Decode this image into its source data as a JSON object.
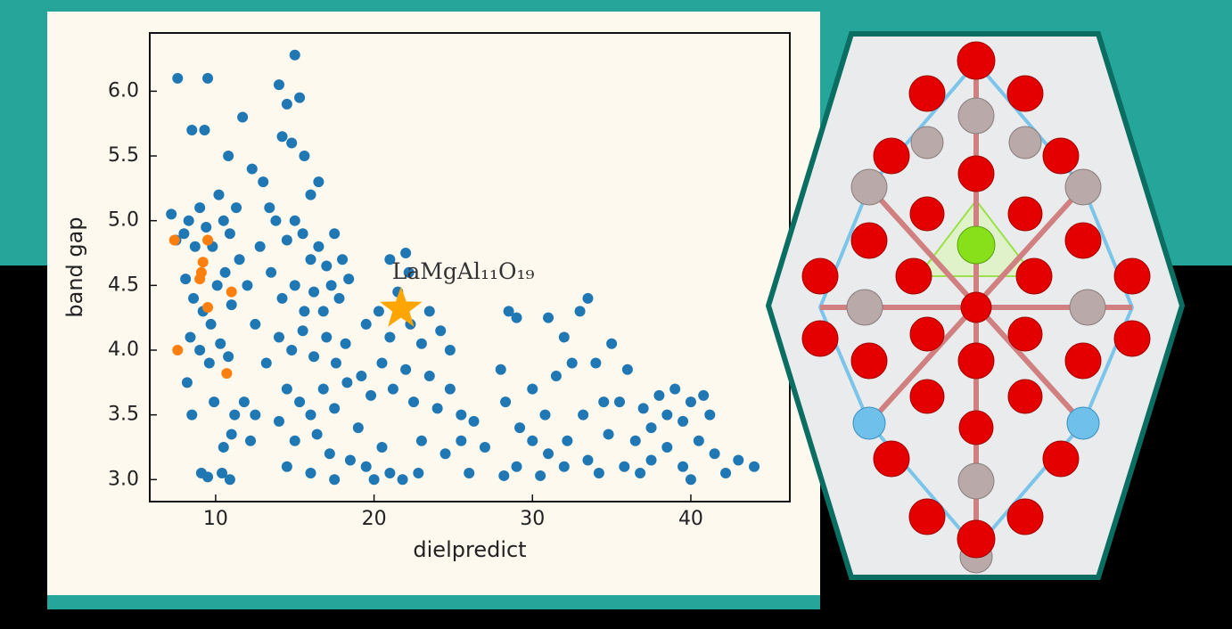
{
  "chart_data": {
    "type": "scatter",
    "xlabel": "dielpredict",
    "ylabel": "band gap",
    "xlim": [
      5.84,
      46.25
    ],
    "ylim": [
      2.83,
      6.45
    ],
    "xticks": [
      10,
      20,
      30,
      40
    ],
    "yticks": [
      {
        "value": 3.0,
        "label": "3.0"
      },
      3.5,
      {
        "value": 4.0,
        "label": "4.0"
      },
      4.5,
      {
        "value": 5.0,
        "label": "5.0"
      },
      5.5,
      {
        "value": 6.0,
        "label": "6.0"
      }
    ],
    "series": [
      {
        "color": "#1f77b4",
        "x": [
          7.6,
          9.5,
          8.5,
          9.3,
          10.8,
          11.7,
          7.2,
          7.5,
          8.0,
          8.3,
          8.7,
          9.0,
          9.4,
          9.8,
          10.2,
          10.5,
          10.9,
          11.3,
          8.1,
          8.6,
          9.2,
          9.7,
          10.1,
          10.6,
          11.0,
          11.5,
          8.4,
          9.0,
          9.6,
          10.3,
          10.8,
          8.2,
          9.9,
          8.5,
          11.2,
          10.5,
          11.0,
          9.1,
          9.5,
          10.4,
          10.9,
          12.2,
          12.5,
          11.8,
          12.5,
          12.0,
          12.8,
          13.0,
          13.4,
          12.3,
          14.0,
          15.0,
          14.5,
          14.8,
          15.3,
          14.2,
          15.6,
          16.0,
          16.5,
          13.8,
          14.5,
          15.0,
          15.5,
          16.0,
          16.5,
          17.0,
          17.5,
          18.0,
          13.5,
          14.2,
          15.0,
          15.6,
          16.2,
          16.8,
          17.3,
          17.8,
          18.4,
          14.0,
          14.8,
          15.5,
          16.2,
          17.0,
          17.6,
          18.2,
          13.2,
          14.5,
          15.3,
          16.0,
          16.8,
          17.5,
          18.3,
          14.0,
          15.0,
          16.4,
          17.2,
          14.5,
          16.0,
          17.5,
          18.5,
          19.0,
          19.5,
          20.0,
          20.5,
          21.0,
          21.8,
          19.2,
          19.8,
          20.5,
          21.2,
          22.0,
          22.5,
          19.5,
          20.3,
          21.0,
          21.5,
          22.3,
          23.0,
          23.5,
          24.2,
          24.8,
          21.0,
          22.2,
          22.0,
          23.5,
          24.0,
          24.8,
          25.5,
          23.0,
          24.5,
          25.5,
          26.3,
          27.0,
          26.0,
          22.8,
          28.0,
          28.5,
          29.0,
          28.3,
          29.2,
          30.0,
          30.8,
          31.5,
          32.0,
          32.5,
          33.0,
          33.5,
          31.0,
          34.0,
          34.5,
          33.2,
          32.2,
          31.0,
          30.0,
          29.0,
          28.2,
          30.5,
          32.0,
          33.5,
          34.8,
          35.5,
          35.0,
          36.0,
          36.5,
          35.8,
          34.2,
          37.0,
          37.5,
          38.0,
          38.5,
          39.0,
          39.5,
          40.0,
          40.8,
          41.2,
          37.5,
          38.5,
          39.5,
          40.5,
          41.5,
          42.2,
          43.0,
          44.0,
          36.8,
          40.0
        ],
        "values": [
          6.1,
          6.1,
          5.7,
          5.7,
          5.5,
          5.8,
          5.05,
          4.85,
          4.9,
          5.0,
          4.8,
          5.1,
          4.95,
          4.8,
          5.2,
          5.0,
          4.9,
          5.1,
          4.55,
          4.4,
          4.3,
          4.2,
          4.5,
          4.6,
          4.35,
          4.7,
          4.1,
          4.0,
          3.9,
          4.05,
          3.95,
          3.75,
          3.6,
          3.5,
          3.5,
          3.25,
          3.35,
          3.05,
          3.02,
          3.05,
          3.0,
          3.3,
          3.5,
          3.6,
          4.2,
          4.5,
          4.8,
          5.3,
          5.1,
          5.4,
          6.05,
          6.28,
          5.9,
          5.6,
          5.95,
          5.65,
          5.5,
          5.2,
          5.3,
          5.0,
          4.85,
          5.0,
          4.9,
          4.7,
          4.8,
          4.65,
          4.9,
          4.7,
          4.6,
          4.4,
          4.5,
          4.3,
          4.45,
          4.3,
          4.5,
          4.4,
          4.55,
          4.1,
          4.0,
          4.15,
          3.95,
          4.1,
          3.9,
          4.05,
          3.9,
          3.7,
          3.6,
          3.5,
          3.7,
          3.55,
          3.75,
          3.45,
          3.3,
          3.35,
          3.2,
          3.1,
          3.05,
          3.0,
          3.15,
          3.4,
          3.1,
          3.0,
          3.25,
          3.05,
          3.0,
          3.8,
          3.65,
          3.9,
          3.7,
          3.85,
          3.6,
          4.2,
          4.3,
          4.1,
          4.45,
          4.2,
          4.05,
          4.3,
          4.15,
          4.0,
          4.7,
          4.6,
          4.75,
          3.8,
          3.55,
          3.7,
          3.5,
          3.3,
          3.2,
          3.3,
          3.45,
          3.25,
          3.05,
          3.05,
          3.85,
          4.3,
          4.25,
          3.6,
          3.4,
          3.7,
          3.5,
          3.8,
          4.1,
          3.9,
          4.3,
          4.4,
          4.25,
          3.9,
          3.6,
          3.5,
          3.3,
          3.2,
          3.3,
          3.1,
          3.03,
          3.03,
          3.1,
          3.15,
          3.35,
          3.6,
          4.05,
          3.85,
          3.3,
          3.1,
          3.05,
          3.55,
          3.4,
          3.65,
          3.5,
          3.7,
          3.45,
          3.6,
          3.65,
          3.5,
          3.15,
          3.25,
          3.1,
          3.3,
          3.2,
          3.05,
          3.15,
          3.1,
          3.05,
          3.0
        ]
      },
      {
        "color": "#ff7f0e",
        "x": [
          7.4,
          9.5,
          9.2,
          9.1,
          9.0,
          9.5,
          11.0,
          7.6,
          10.7
        ],
        "values": [
          4.85,
          4.85,
          4.68,
          4.6,
          4.55,
          4.33,
          4.45,
          4.0,
          3.82
        ]
      }
    ],
    "highlight": {
      "x": 21.7,
      "y": 4.32,
      "label": "LaMgAl₁₁O₁₉",
      "color": "#ffa500"
    }
  }
}
